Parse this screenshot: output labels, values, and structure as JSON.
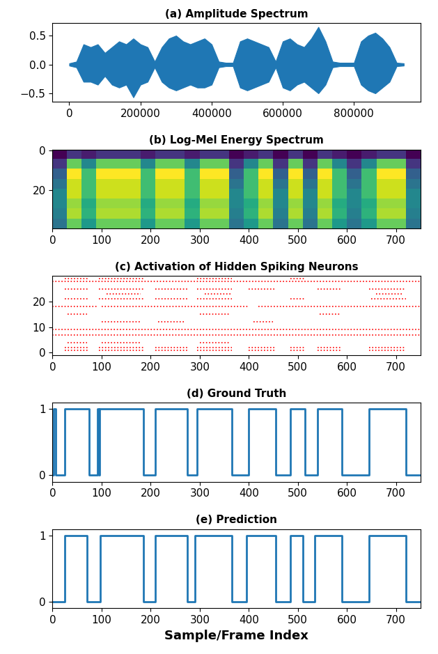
{
  "chart_data": [
    {
      "type": "area",
      "title": "(a) Amplitude Spectrum",
      "color": "#1f77b4",
      "x": [
        0,
        20000,
        40000,
        60000,
        80000,
        100000,
        120000,
        140000,
        160000,
        180000,
        200000,
        220000,
        240000,
        260000,
        280000,
        300000,
        320000,
        340000,
        360000,
        380000,
        400000,
        420000,
        440000,
        460000,
        480000,
        500000,
        520000,
        540000,
        560000,
        580000,
        600000,
        620000,
        640000,
        660000,
        680000,
        700000,
        720000,
        740000,
        760000,
        780000,
        800000,
        820000,
        840000,
        860000,
        880000,
        900000,
        920000,
        940000
      ],
      "upper": [
        0.02,
        0.05,
        0.35,
        0.3,
        0.35,
        0.2,
        0.3,
        0.4,
        0.35,
        0.45,
        0.35,
        0.3,
        0.05,
        0.3,
        0.45,
        0.5,
        0.4,
        0.35,
        0.4,
        0.45,
        0.35,
        0.05,
        0.03,
        0.03,
        0.4,
        0.45,
        0.4,
        0.35,
        0.3,
        0.05,
        0.4,
        0.45,
        0.35,
        0.3,
        0.45,
        0.65,
        0.4,
        0.05,
        0.03,
        0.03,
        0.03,
        0.4,
        0.5,
        0.55,
        0.45,
        0.3,
        0.03,
        0.02
      ],
      "lower": [
        -0.02,
        -0.05,
        -0.3,
        -0.3,
        -0.35,
        -0.2,
        -0.35,
        -0.4,
        -0.35,
        -0.57,
        -0.35,
        -0.3,
        -0.05,
        -0.3,
        -0.4,
        -0.45,
        -0.4,
        -0.35,
        -0.4,
        -0.4,
        -0.35,
        -0.05,
        -0.03,
        -0.03,
        -0.4,
        -0.45,
        -0.4,
        -0.35,
        -0.3,
        -0.05,
        -0.4,
        -0.45,
        -0.35,
        -0.3,
        -0.4,
        -0.5,
        -0.35,
        -0.05,
        -0.03,
        -0.03,
        -0.03,
        -0.35,
        -0.45,
        -0.5,
        -0.4,
        -0.3,
        -0.03,
        -0.02
      ],
      "xlim": [
        -47000,
        987000
      ],
      "xticks": [
        0,
        200000,
        400000,
        600000,
        800000
      ],
      "ylim": [
        -0.65,
        0.72
      ],
      "yticks": [
        {
          "value": -0.5,
          "label": "−0.5"
        },
        {
          "value": 0.0,
          "label": "0.0"
        },
        0.5
      ]
    },
    {
      "type": "heatmap",
      "title": "(b) Log-Mel Energy Spectrum",
      "cells": [
        [
          0.05,
          0.15,
          0.1,
          0.15,
          0.15,
          0.15,
          0.1,
          0.15,
          0.15,
          0.1,
          0.15,
          0.15,
          0.05,
          0.1,
          0.15,
          0.05,
          0.15,
          0.05,
          0.15,
          0.1,
          0.05,
          0.1,
          0.15,
          0.15,
          0.05
        ],
        [
          0.15,
          0.55,
          0.35,
          0.55,
          0.55,
          0.55,
          0.35,
          0.55,
          0.55,
          0.35,
          0.55,
          0.55,
          0.15,
          0.35,
          0.55,
          0.15,
          0.55,
          0.15,
          0.55,
          0.35,
          0.15,
          0.35,
          0.55,
          0.55,
          0.15
        ],
        [
          0.25,
          0.7,
          0.5,
          0.7,
          0.7,
          0.7,
          0.5,
          0.7,
          0.7,
          0.5,
          0.7,
          0.7,
          0.25,
          0.5,
          0.7,
          0.25,
          0.7,
          0.25,
          0.7,
          0.5,
          0.25,
          0.5,
          0.7,
          0.7,
          0.25
        ],
        [
          0.3,
          0.65,
          0.5,
          0.65,
          0.65,
          0.65,
          0.5,
          0.65,
          0.65,
          0.5,
          0.65,
          0.65,
          0.3,
          0.5,
          0.65,
          0.3,
          0.65,
          0.3,
          0.65,
          0.5,
          0.3,
          0.5,
          0.65,
          0.65,
          0.3
        ],
        [
          0.35,
          0.65,
          0.5,
          0.65,
          0.65,
          0.65,
          0.5,
          0.65,
          0.65,
          0.5,
          0.65,
          0.65,
          0.35,
          0.5,
          0.65,
          0.35,
          0.65,
          0.35,
          0.65,
          0.5,
          0.35,
          0.5,
          0.65,
          0.65,
          0.35
        ],
        [
          0.35,
          0.6,
          0.45,
          0.6,
          0.6,
          0.6,
          0.45,
          0.6,
          0.6,
          0.45,
          0.6,
          0.6,
          0.35,
          0.45,
          0.6,
          0.35,
          0.6,
          0.35,
          0.6,
          0.45,
          0.35,
          0.45,
          0.6,
          0.6,
          0.35
        ],
        [
          0.33,
          0.62,
          0.47,
          0.62,
          0.62,
          0.62,
          0.47,
          0.62,
          0.62,
          0.47,
          0.62,
          0.62,
          0.33,
          0.47,
          0.62,
          0.33,
          0.62,
          0.33,
          0.62,
          0.47,
          0.33,
          0.47,
          0.62,
          0.62,
          0.33
        ],
        [
          0.3,
          0.55,
          0.4,
          0.55,
          0.55,
          0.55,
          0.4,
          0.55,
          0.55,
          0.4,
          0.55,
          0.55,
          0.3,
          0.4,
          0.55,
          0.3,
          0.55,
          0.3,
          0.55,
          0.4,
          0.3,
          0.4,
          0.55,
          0.55,
          0.3
        ]
      ],
      "xlim": [
        0,
        750
      ],
      "xticks": [
        0,
        100,
        200,
        300,
        400,
        500,
        600,
        700
      ],
      "ylim": [
        39.5,
        -0.5
      ],
      "yticks": [
        0,
        20
      ]
    },
    {
      "type": "raster",
      "title": "(c) Activation of Hidden Spiking Neurons",
      "color": "#ff0000",
      "line_style": "dotted",
      "spikes": [
        {
          "neuron": 1,
          "intervals": [
            [
              25,
              75
            ],
            [
              95,
              185
            ],
            [
              210,
              275
            ],
            [
              295,
              365
            ],
            [
              400,
              455
            ],
            [
              485,
              515
            ],
            [
              540,
              590
            ],
            [
              645,
              720
            ]
          ]
        },
        {
          "neuron": 2,
          "intervals": [
            [
              25,
              75
            ],
            [
              95,
              185
            ],
            [
              210,
              275
            ],
            [
              295,
              365
            ],
            [
              400,
              455
            ],
            [
              485,
              515
            ],
            [
              540,
              590
            ],
            [
              645,
              720
            ]
          ]
        },
        {
          "neuron": 4,
          "intervals": [
            [
              30,
              70
            ],
            [
              100,
              180
            ],
            [
              300,
              360
            ]
          ]
        },
        {
          "neuron": 7,
          "intervals": [
            [
              0,
              750
            ]
          ]
        },
        {
          "neuron": 9,
          "intervals": [
            [
              0,
              750
            ]
          ]
        },
        {
          "neuron": 12,
          "intervals": [
            [
              100,
              180
            ],
            [
              215,
              270
            ],
            [
              410,
              450
            ]
          ]
        },
        {
          "neuron": 15,
          "intervals": [
            [
              30,
              70
            ],
            [
              300,
              360
            ],
            [
              545,
              585
            ]
          ]
        },
        {
          "neuron": 18,
          "intervals": [
            [
              0,
              90
            ],
            [
              100,
              400
            ],
            [
              420,
              750
            ]
          ]
        },
        {
          "neuron": 21,
          "intervals": [
            [
              25,
              75
            ],
            [
              95,
              185
            ],
            [
              210,
              275
            ],
            [
              295,
              365
            ],
            [
              485,
              515
            ],
            [
              650,
              720
            ]
          ]
        },
        {
          "neuron": 23,
          "intervals": [
            [
              110,
              180
            ],
            [
              310,
              365
            ],
            [
              660,
              715
            ]
          ]
        },
        {
          "neuron": 25,
          "intervals": [
            [
              25,
              75
            ],
            [
              95,
              185
            ],
            [
              210,
              275
            ],
            [
              295,
              365
            ],
            [
              400,
              455
            ],
            [
              540,
              590
            ],
            [
              645,
              720
            ]
          ]
        },
        {
          "neuron": 28,
          "intervals": [
            [
              0,
              750
            ]
          ]
        },
        {
          "neuron": 29,
          "intervals": [
            [
              25,
              75
            ],
            [
              95,
              185
            ],
            [
              295,
              365
            ],
            [
              485,
              515
            ]
          ]
        }
      ],
      "xlim": [
        0,
        750
      ],
      "xticks": [
        0,
        100,
        200,
        300,
        400,
        500,
        600,
        700
      ],
      "ylim": [
        -1,
        30
      ],
      "yticks": [
        0,
        10,
        20
      ]
    },
    {
      "type": "line",
      "title": "(d) Ground Truth",
      "color": "#1f77b4",
      "line_style": "steps",
      "x": [
        0,
        2,
        6,
        25,
        75,
        92,
        94,
        96,
        185,
        210,
        275,
        295,
        365,
        400,
        455,
        485,
        515,
        540,
        590,
        645,
        720,
        750
      ],
      "values": [
        0,
        1,
        0,
        1,
        0,
        1,
        0,
        1,
        0,
        1,
        0,
        1,
        0,
        1,
        0,
        1,
        0,
        1,
        0,
        1,
        0,
        0
      ],
      "xlim": [
        0,
        750
      ],
      "xticks": [
        0,
        100,
        200,
        300,
        400,
        500,
        600,
        700
      ],
      "ylim": [
        -0.1,
        1.1
      ],
      "yticks": [
        0,
        1
      ]
    },
    {
      "type": "line",
      "title": "(e) Prediction",
      "color": "#1f77b4",
      "line_style": "steps",
      "x_label": "Sample/Frame Index",
      "x": [
        0,
        25,
        70,
        97,
        185,
        210,
        275,
        290,
        365,
        395,
        455,
        485,
        510,
        535,
        590,
        645,
        720,
        750
      ],
      "values": [
        0,
        1,
        0,
        1,
        0,
        1,
        0,
        1,
        0,
        1,
        0,
        1,
        0,
        1,
        0,
        1,
        0,
        0
      ],
      "xlim": [
        0,
        750
      ],
      "xticks": [
        0,
        100,
        200,
        300,
        400,
        500,
        600,
        700
      ],
      "ylim": [
        -0.1,
        1.1
      ],
      "yticks": [
        0,
        1
      ]
    }
  ]
}
